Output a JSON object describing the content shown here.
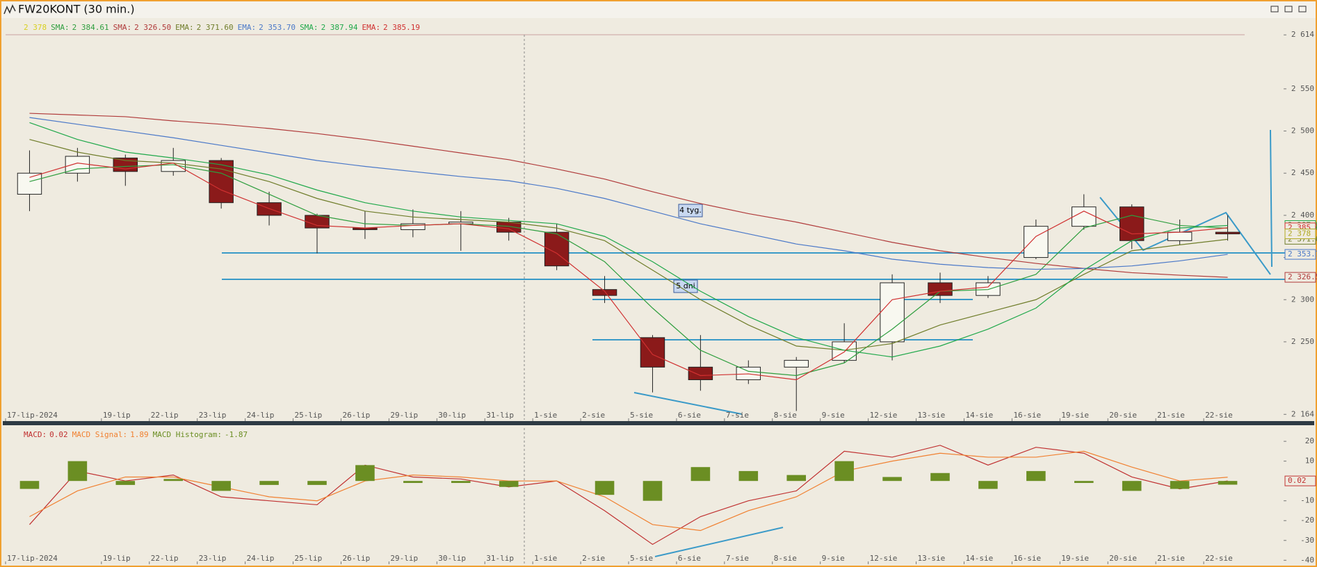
{
  "chart_data": [
    {
      "type": "candlestick",
      "title": "FW20KONT (30 min.)",
      "categories": [
        "17-lip-2024",
        null,
        "19-lip",
        "22-lip",
        "23-lip",
        "24-lip",
        "25-lip",
        "26-lip",
        "29-lip",
        "30-lip",
        "31-lip",
        "1-sie",
        "2-sie",
        "5-sie",
        "6-sie",
        "7-sie",
        "8-sie",
        "9-sie",
        "12-sie",
        "13-sie",
        "14-sie",
        "16-sie",
        "19-sie",
        "20-sie",
        "21-sie",
        "22-sie"
      ],
      "open": [
        2425,
        2450,
        2468,
        2452,
        2465,
        2415,
        2400,
        2385,
        2383,
        2390,
        2392,
        2380,
        2312,
        2255,
        2220,
        2205,
        2220,
        2228,
        2250,
        2320,
        2305,
        2350,
        2387,
        2410,
        2370,
        2380
      ],
      "high": [
        2477,
        2480,
        2472,
        2480,
        2468,
        2428,
        2402,
        2405,
        2407,
        2405,
        2397,
        2390,
        2328,
        2258,
        2258,
        2228,
        2232,
        2272,
        2330,
        2332,
        2328,
        2395,
        2425,
        2413,
        2395,
        2400
      ],
      "low": [
        2405,
        2440,
        2435,
        2447,
        2408,
        2388,
        2355,
        2372,
        2374,
        2358,
        2370,
        2335,
        2296,
        2190,
        2192,
        2200,
        2168,
        2225,
        2228,
        2296,
        2302,
        2348,
        2383,
        2360,
        2365,
        2370
      ],
      "close": [
        2450,
        2470,
        2452,
        2465,
        2415,
        2400,
        2385,
        2383,
        2390,
        2392,
        2380,
        2340,
        2305,
        2220,
        2205,
        2220,
        2228,
        2250,
        2320,
        2305,
        2320,
        2387,
        2410,
        2370,
        2380,
        2378
      ],
      "close_label": "2 378",
      "close_color": "#d8d020",
      "series": [
        {
          "name": "SMA:",
          "color": "#2e9e3e",
          "last_label": "2 384.61",
          "values": [
            2440,
            2455,
            2458,
            2460,
            2450,
            2425,
            2400,
            2390,
            2388,
            2390,
            2387,
            2378,
            2345,
            2290,
            2240,
            2215,
            2210,
            2225,
            2265,
            2310,
            2312,
            2330,
            2385,
            2400,
            2388,
            2384.61
          ]
        },
        {
          "name": "SMA:",
          "color": "#b03a3a",
          "last_label": "2 326.50",
          "values": [
            2521,
            2519,
            2517,
            2512,
            2508,
            2503,
            2497,
            2490,
            2482,
            2474,
            2466,
            2455,
            2443,
            2428,
            2414,
            2402,
            2392,
            2380,
            2368,
            2358,
            2350,
            2343,
            2337,
            2332,
            2329,
            2326.5
          ]
        },
        {
          "name": "EMA:",
          "color": "#6f7d2a",
          "last_label": "2 371.60",
          "values": [
            2490,
            2475,
            2465,
            2462,
            2455,
            2440,
            2420,
            2405,
            2398,
            2395,
            2392,
            2385,
            2370,
            2335,
            2300,
            2270,
            2245,
            2240,
            2248,
            2270,
            2285,
            2300,
            2330,
            2358,
            2365,
            2371.6
          ]
        },
        {
          "name": "EMA:",
          "color": "#4a78c8",
          "last_label": "2 353.70",
          "values": [
            2516,
            2508,
            2500,
            2492,
            2483,
            2474,
            2465,
            2458,
            2452,
            2446,
            2441,
            2432,
            2420,
            2405,
            2390,
            2378,
            2366,
            2358,
            2348,
            2342,
            2338,
            2336,
            2337,
            2340,
            2346,
            2353.7
          ]
        },
        {
          "name": "SMA:",
          "color": "#1fa84a",
          "last_label": "2 387.94",
          "values": [
            2510,
            2490,
            2475,
            2468,
            2460,
            2448,
            2430,
            2415,
            2405,
            2398,
            2394,
            2390,
            2375,
            2345,
            2310,
            2280,
            2255,
            2240,
            2232,
            2245,
            2265,
            2290,
            2335,
            2370,
            2385,
            2387.94
          ]
        },
        {
          "name": "EMA:",
          "color": "#d03030",
          "last_label": "2 385.19",
          "values": [
            2445,
            2462,
            2455,
            2462,
            2430,
            2408,
            2388,
            2385,
            2388,
            2390,
            2384,
            2355,
            2310,
            2235,
            2210,
            2212,
            2205,
            2238,
            2300,
            2310,
            2315,
            2375,
            2405,
            2378,
            2380,
            2385.19
          ]
        }
      ],
      "annotations": [
        "4 tyg.",
        "5 dni"
      ],
      "ylim": [
        2156,
        2629
      ],
      "yticks": [
        {
          "value": 2614,
          "label": "2 614"
        },
        {
          "value": 2550,
          "label": "2 550"
        },
        {
          "value": 2500,
          "label": "2 500"
        },
        {
          "value": 2450,
          "label": "2 450"
        },
        {
          "value": 2400,
          "label": "2 400"
        },
        {
          "value": 2350,
          "label": "2 350"
        },
        {
          "value": 2300,
          "label": "2 300"
        },
        {
          "value": 2250,
          "label": "2 250"
        },
        {
          "value": 2164,
          "label": "2 164"
        }
      ]
    },
    {
      "type": "macd",
      "categories": [
        "17-lip-2024",
        null,
        "19-lip",
        "22-lip",
        "23-lip",
        "24-lip",
        "25-lip",
        "26-lip",
        "29-lip",
        "30-lip",
        "31-lip",
        "1-sie",
        "2-sie",
        "5-sie",
        "6-sie",
        "7-sie",
        "8-sie",
        "9-sie",
        "12-sie",
        "13-sie",
        "14-sie",
        "16-sie",
        "19-sie",
        "20-sie",
        "21-sie",
        "22-sie"
      ],
      "series": [
        {
          "name": "MACD:",
          "color": "#c03030",
          "last_label": "0.02",
          "values": [
            -22,
            5,
            0,
            3,
            -8,
            -10,
            -12,
            8,
            2,
            1,
            -3,
            0,
            -15,
            -32,
            -18,
            -10,
            -5,
            15,
            12,
            18,
            8,
            17,
            14,
            2,
            -4,
            0.02
          ]
        },
        {
          "name": "MACD Signal:",
          "color": "#f08030",
          "last_label": "1.89",
          "values": [
            -18,
            -5,
            2,
            2,
            -3,
            -8,
            -10,
            0,
            3,
            2,
            0,
            0,
            -8,
            -22,
            -25,
            -15,
            -8,
            5,
            10,
            14,
            12,
            12,
            15,
            7,
            0,
            1.89
          ]
        },
        {
          "name": "MACD Histogram:",
          "color": "#6b8e23",
          "last_label": "-1.87",
          "bar": true,
          "values": [
            -4,
            10,
            -2,
            1,
            -5,
            -2,
            -2,
            8,
            -1,
            -1,
            -3,
            0,
            -7,
            -10,
            7,
            5,
            3,
            10,
            2,
            4,
            -4,
            5,
            -1,
            -5,
            -4,
            -1.87
          ]
        }
      ],
      "ylim": [
        -42,
        26
      ],
      "yticks": [
        20,
        10,
        -10,
        -20,
        -30,
        -40
      ]
    }
  ]
}
